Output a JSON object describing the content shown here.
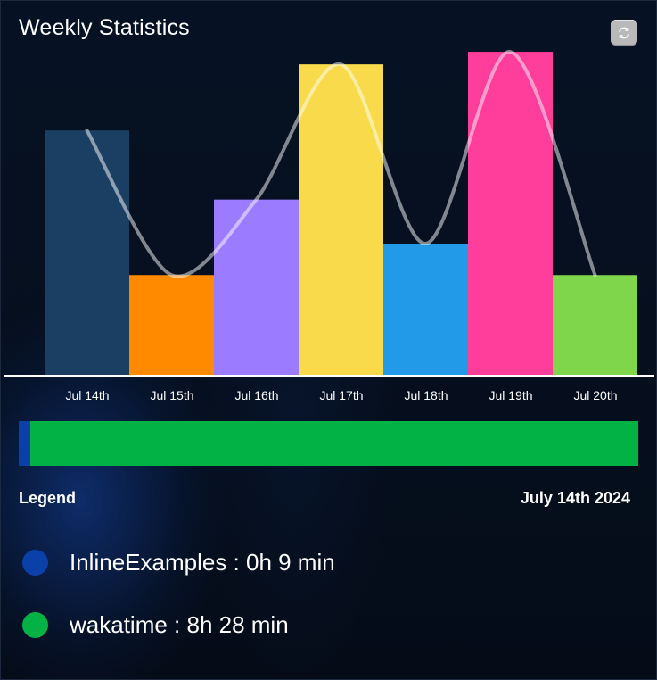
{
  "title": "Weekly Statistics",
  "refresh_icon": "refresh-icon",
  "chart_data": {
    "type": "bar",
    "categories": [
      "Jul 14th",
      "Jul 15th",
      "Jul 16th",
      "Jul 17th",
      "Jul 18th",
      "Jul 19th",
      "Jul 20th"
    ],
    "values": [
      0.78,
      0.32,
      0.56,
      0.99,
      0.42,
      1.03,
      0.32
    ],
    "colors": [
      "#1b3f62",
      "#ff8a00",
      "#9b7bff",
      "#f9da4a",
      "#239ae8",
      "#ff3d9a",
      "#80d64b"
    ],
    "ylim": [
      0,
      1.05
    ],
    "overlay": "smooth-line",
    "grid": false
  },
  "usage_bar": [
    {
      "name": "InlineExamples",
      "fraction": 0.018,
      "color": "#0a40a8"
    },
    {
      "name": "wakatime",
      "fraction": 0.982,
      "color": "#02b244"
    }
  ],
  "legend": {
    "title": "Legend",
    "date": "July 14th 2024",
    "items": [
      {
        "label": "InlineExamples : 0h 9 min",
        "color": "#0a40a8"
      },
      {
        "label": "wakatime : 8h 28 min",
        "color": "#02b244"
      }
    ]
  }
}
